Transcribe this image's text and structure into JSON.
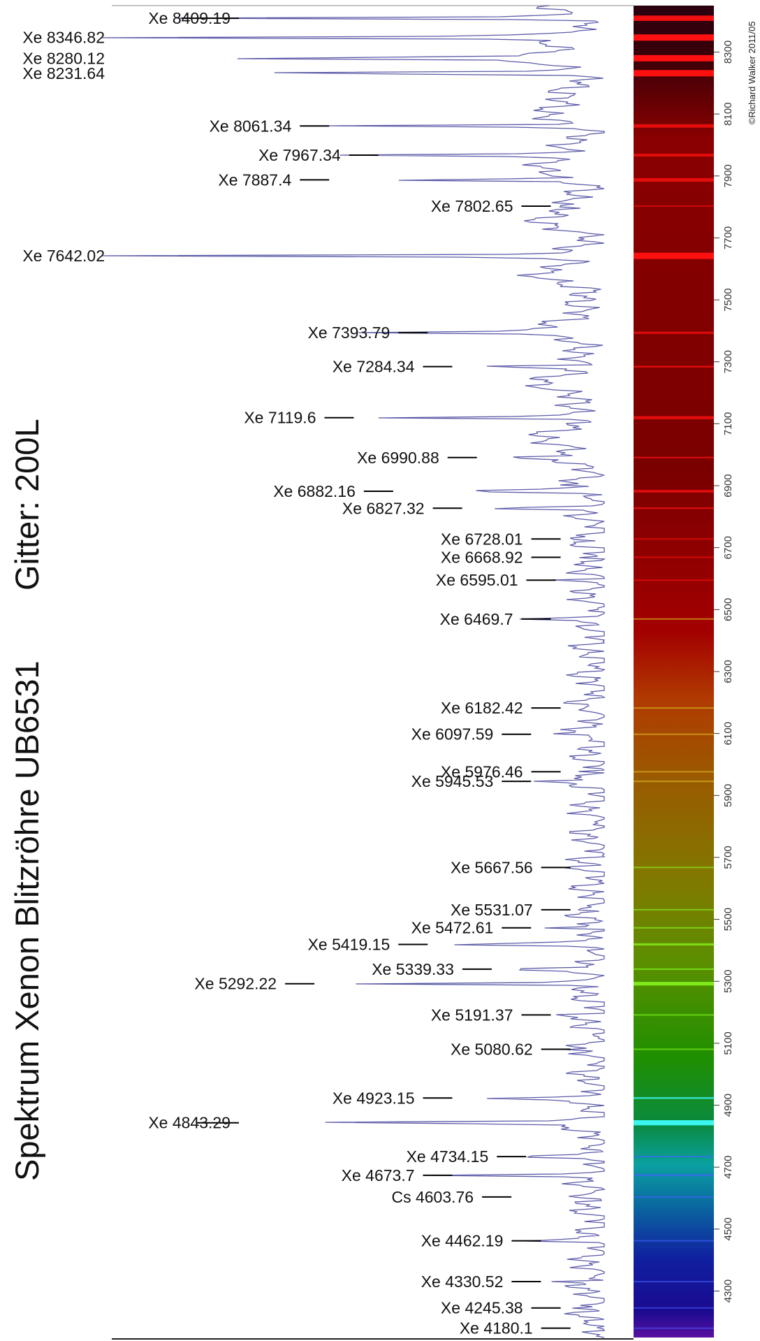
{
  "title": "Spektrum Xenon Blitzröhre UB6531",
  "subtitle": "Gitter: 200L",
  "copyright": "©Richard Walker 2011/05",
  "chart_data": {
    "type": "line",
    "title": "Spektrum Xenon Blitzröhre UB6531",
    "subtitle": "Gitter: 200L",
    "xlabel": "",
    "ylabel": "",
    "wavelength_range": [
      4150,
      8450
    ],
    "wavelength_ticks": [
      4300,
      4500,
      4700,
      4900,
      5100,
      5300,
      5500,
      5700,
      5900,
      6100,
      6300,
      6500,
      6700,
      6900,
      7100,
      7300,
      7500,
      7700,
      7900,
      8100,
      8300
    ],
    "grid": false,
    "legend": "none",
    "series_color": "#5a5aa8",
    "spectrum_band": "rainbow",
    "lines": [
      {
        "label": "Xe 8409.19",
        "wavelength": 8409.19,
        "peak": 0.85
      },
      {
        "label": "Xe 8346.82",
        "wavelength": 8346.82,
        "peak": 1.0
      },
      {
        "label": "Xe 8280.12",
        "wavelength": 8280.12,
        "peak": 1.0
      },
      {
        "label": "Xe 8231.64",
        "wavelength": 8231.64,
        "peak": 1.0
      },
      {
        "label": "Xe 8061.34",
        "wavelength": 8061.34,
        "peak": 0.55
      },
      {
        "label": "Xe 7967.34",
        "wavelength": 7967.34,
        "peak": 0.45
      },
      {
        "label": "Xe 7887.4",
        "wavelength": 7887.4,
        "peak": 0.55
      },
      {
        "label": "Xe 7802.65",
        "wavelength": 7802.65,
        "peak": 0.1
      },
      {
        "label": "Xe 7642.02",
        "wavelength": 7642.02,
        "peak": 1.0
      },
      {
        "label": "Xe 7393.79",
        "wavelength": 7393.79,
        "peak": 0.35
      },
      {
        "label": "Xe 7284.34",
        "wavelength": 7284.34,
        "peak": 0.3
      },
      {
        "label": "Xe 7119.6",
        "wavelength": 7119.6,
        "peak": 0.5
      },
      {
        "label": "Xe 6990.88",
        "wavelength": 6990.88,
        "peak": 0.25
      },
      {
        "label": "Xe 6882.16",
        "wavelength": 6882.16,
        "peak": 0.42
      },
      {
        "label": "Xe 6827.32",
        "wavelength": 6827.32,
        "peak": 0.28
      },
      {
        "label": "Xe 6728.01",
        "wavelength": 6728.01,
        "peak": 0.08
      },
      {
        "label": "Xe 6668.92",
        "wavelength": 6668.92,
        "peak": 0.08
      },
      {
        "label": "Xe 6595.01",
        "wavelength": 6595.01,
        "peak": 0.09
      },
      {
        "label": "Xe 6469.7",
        "wavelength": 6469.7,
        "peak": 0.1
      },
      {
        "label": "Xe 6182.42",
        "wavelength": 6182.42,
        "peak": 0.08
      },
      {
        "label": "Xe 6097.59",
        "wavelength": 6097.59,
        "peak": 0.14
      },
      {
        "label": "Xe 5945.53",
        "wavelength": 5945.53,
        "peak": 0.14
      },
      {
        "label": "Xe 5976.46",
        "wavelength": 5976.46,
        "peak": 0.08
      },
      {
        "label": "Xe 5667.56",
        "wavelength": 5667.56,
        "peak": 0.06
      },
      {
        "label": "Xe 5531.07",
        "wavelength": 5531.07,
        "peak": 0.06
      },
      {
        "label": "Xe 5472.61",
        "wavelength": 5472.61,
        "peak": 0.14
      },
      {
        "label": "Xe 5419.15",
        "wavelength": 5419.15,
        "peak": 0.35
      },
      {
        "label": "Xe 5339.33",
        "wavelength": 5339.33,
        "peak": 0.22
      },
      {
        "label": "Xe 5292.22",
        "wavelength": 5292.22,
        "peak": 0.58
      },
      {
        "label": "Xe 5191.37",
        "wavelength": 5191.37,
        "peak": 0.1
      },
      {
        "label": "Xe 5080.62",
        "wavelength": 5080.62,
        "peak": 0.06
      },
      {
        "label": "Xe 4923.15",
        "wavelength": 4923.15,
        "peak": 0.3
      },
      {
        "label": "Xe 4843.29",
        "wavelength": 4843.29,
        "peak": 0.82
      },
      {
        "label": "Xe 4734.15",
        "wavelength": 4734.15,
        "peak": 0.15
      },
      {
        "label": "Xe 4673.7",
        "wavelength": 4673.7,
        "peak": 0.3
      },
      {
        "label": "Cs 4603.76",
        "wavelength": 4603.76,
        "peak": 0.18
      },
      {
        "label": "Xe  4462.19",
        "wavelength": 4462.19,
        "peak": 0.12
      },
      {
        "label": "Xe  4330.52",
        "wavelength": 4330.52,
        "peak": 0.12
      },
      {
        "label": "Xe  4245.38",
        "wavelength": 4245.38,
        "peak": 0.08
      },
      {
        "label": "Xe  4180.1",
        "wavelength": 4180.1,
        "peak": 0.06
      }
    ]
  }
}
